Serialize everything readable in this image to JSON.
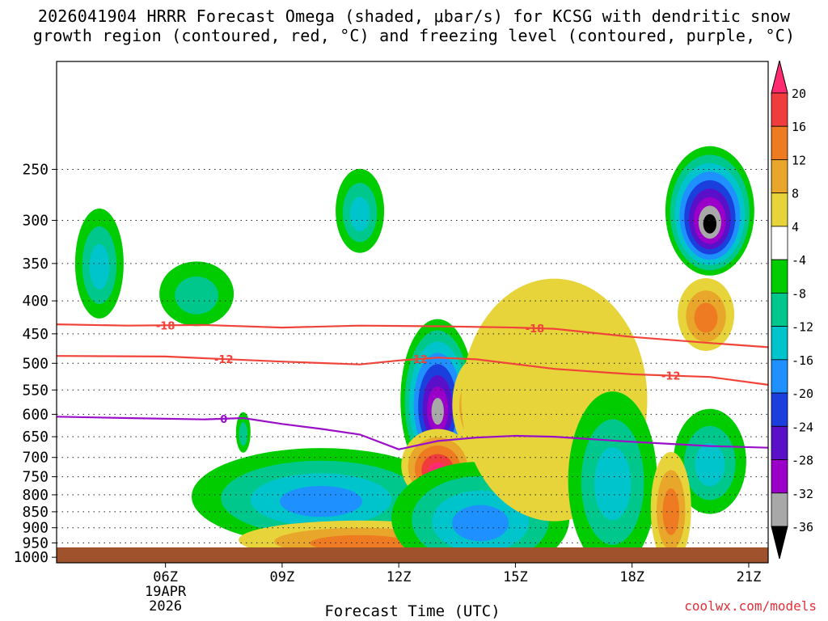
{
  "header": {
    "title_line1": "2026041904 HRRR Forecast Omega (shaded, μbar/s) for KCSG with dendritic snow",
    "title_line2": "growth region (contoured, red, °C) and freezing level (contoured, purple, °C)"
  },
  "footer": {
    "credit": "coolwx.com/models"
  },
  "chart_data": {
    "type": "contour",
    "title": "2026041904 HRRR Forecast Omega (shaded, μbar/s) for KCSG with dendritic snow growth region (contoured, red, °C) and freezing level (contoured, purple, °C)",
    "xlabel": "Forecast Time (UTC)",
    "ylabel": "",
    "x_range_hours_utc": [
      3.2,
      21.5
    ],
    "y_range_hpa": [
      1020,
      170
    ],
    "y_ticks": [
      250,
      300,
      350,
      400,
      450,
      500,
      550,
      600,
      650,
      700,
      750,
      800,
      850,
      900,
      950,
      1000
    ],
    "x_ticks": [
      {
        "hour": 6,
        "label": "06Z"
      },
      {
        "hour": 9,
        "label": "09Z"
      },
      {
        "hour": 12,
        "label": "12Z"
      },
      {
        "hour": 15,
        "label": "15Z"
      },
      {
        "hour": 18,
        "label": "18Z"
      },
      {
        "hour": 21,
        "label": "21Z"
      }
    ],
    "date_label": [
      "19APR",
      "2026"
    ],
    "colorbar": {
      "units": "μbar/s",
      "labels": [
        20,
        16,
        12,
        8,
        4,
        -4,
        -8,
        -12,
        -16,
        -20,
        -24,
        -28,
        -32,
        -36
      ],
      "colors": [
        "#ff2a70",
        "#f03c3c",
        "#ee7a22",
        "#e8a62a",
        "#e7d43a",
        "#ffffff",
        "#00cc00",
        "#00c88c",
        "#00c4cc",
        "#1e90ff",
        "#1a3fdc",
        "#5a10c8",
        "#9a00c8",
        "#a8a8a8",
        "#000000"
      ]
    },
    "omega_regions": [
      {
        "hour": 4.3,
        "p": 350,
        "value": -13
      },
      {
        "hour": 6.8,
        "p": 390,
        "value": -8
      },
      {
        "hour": 8.0,
        "p": 640,
        "value": -8
      },
      {
        "hour": 10.0,
        "p": 805,
        "value": -17
      },
      {
        "hour": 11.0,
        "p": 940,
        "value": 13
      },
      {
        "hour": 11.0,
        "p": 290,
        "value": -14
      },
      {
        "hour": 13.0,
        "p": 570,
        "value": -33
      },
      {
        "hour": 13.0,
        "p": 720,
        "value": 22
      },
      {
        "hour": 14.0,
        "p": 580,
        "value": 14
      },
      {
        "hour": 14.1,
        "p": 870,
        "value": -18
      },
      {
        "hour": 16.0,
        "p": 570,
        "value": 7
      },
      {
        "hour": 17.5,
        "p": 760,
        "value": -14
      },
      {
        "hour": 20.0,
        "p": 290,
        "value": -36
      },
      {
        "hour": 19.9,
        "p": 420,
        "value": 12
      },
      {
        "hour": 20.0,
        "p": 710,
        "value": -14
      },
      {
        "hour": 19.0,
        "p": 840,
        "value": 12
      }
    ],
    "series": [
      {
        "name": "-18",
        "label": "-18 °C isotherm",
        "color": "#f0443a",
        "points": [
          [
            3.2,
            435
          ],
          [
            5,
            437
          ],
          [
            7,
            436
          ],
          [
            9,
            440
          ],
          [
            11,
            437
          ],
          [
            13,
            438
          ],
          [
            15,
            440
          ],
          [
            16,
            442
          ],
          [
            18,
            455
          ],
          [
            20,
            465
          ],
          [
            21.5,
            472
          ]
        ]
      },
      {
        "name": "-12",
        "label": "-12 °C isotherm",
        "color": "#f0443a",
        "points": [
          [
            3.2,
            487
          ],
          [
            6,
            488
          ],
          [
            9,
            497
          ],
          [
            11,
            502
          ],
          [
            12,
            495
          ],
          [
            13,
            490
          ],
          [
            14,
            493
          ],
          [
            16,
            510
          ],
          [
            18,
            520
          ],
          [
            20,
            525
          ],
          [
            21.5,
            540
          ]
        ]
      },
      {
        "name": "0",
        "label": "0 °C freezing level",
        "color": "#9a10c8",
        "points": [
          [
            3.2,
            605
          ],
          [
            5,
            608
          ],
          [
            7,
            611
          ],
          [
            8,
            608
          ],
          [
            9,
            621
          ],
          [
            10,
            632
          ],
          [
            11,
            645
          ],
          [
            12,
            680
          ],
          [
            13,
            660
          ],
          [
            14,
            652
          ],
          [
            15,
            648
          ],
          [
            16,
            650
          ],
          [
            18,
            662
          ],
          [
            20,
            672
          ],
          [
            21.5,
            676
          ]
        ]
      }
    ]
  }
}
